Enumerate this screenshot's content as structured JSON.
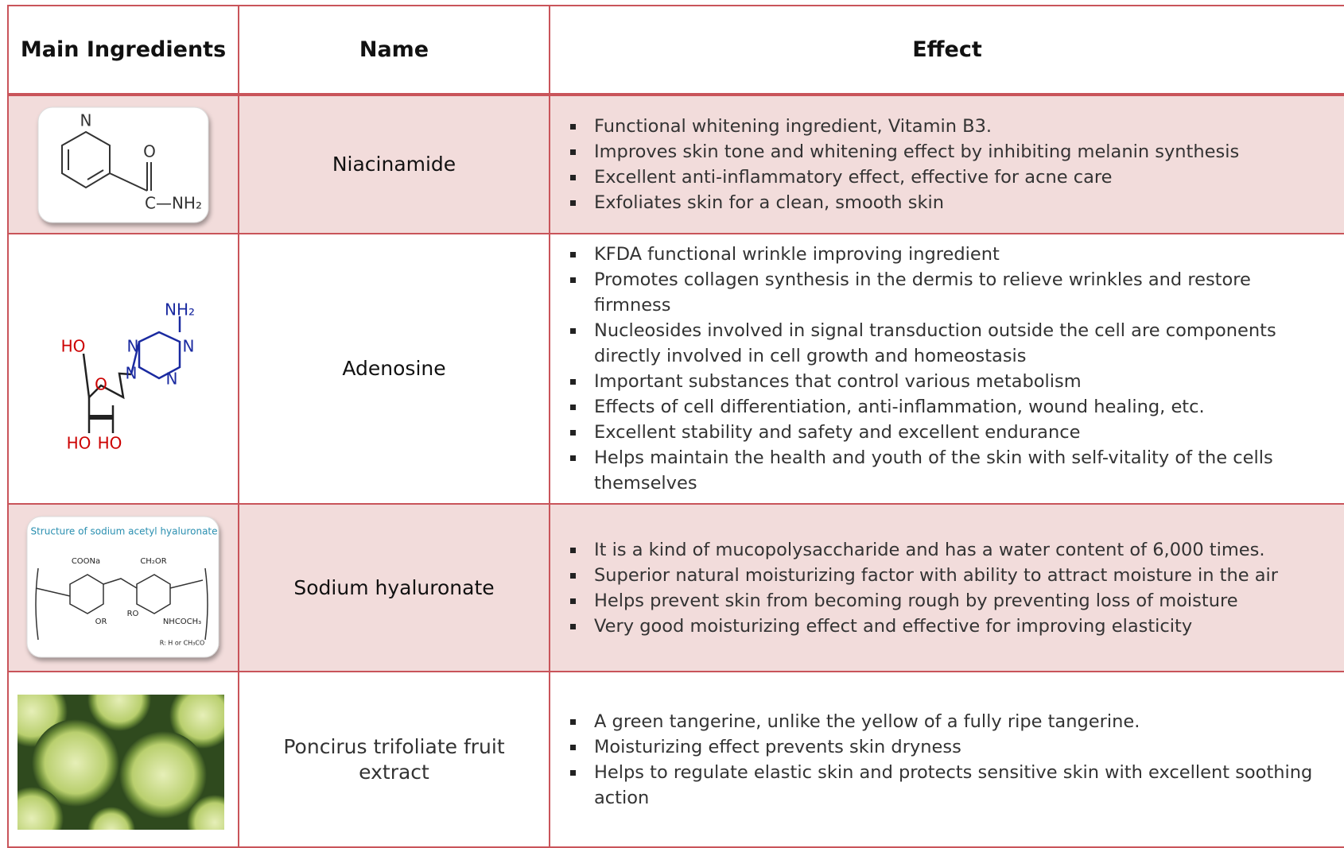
{
  "table": {
    "header": [
      "Main Ingredients",
      "Name",
      "Effect"
    ],
    "rows": [
      {
        "name": "Niacinamide",
        "image_labels": [
          "N",
          "O",
          "C—NH₂"
        ],
        "effects": [
          "Functional whitening ingredient, Vitamin B3.",
          "Improves skin tone and whitening effect by inhibiting melanin synthesis",
          "Excellent anti-inflammatory effect, effective for acne care",
          "Exfoliates skin for a clean, smooth skin"
        ]
      },
      {
        "name": "Adenosine",
        "image_labels": [
          "NH₂",
          "HO",
          "N",
          "N",
          "N",
          "N",
          "O",
          "HO",
          "HO"
        ],
        "effects": [
          "KFDA functional wrinkle improving ingredient",
          "Promotes collagen synthesis in the dermis to relieve wrinkles and restore firmness",
          "Nucleosides involved in signal transduction outside the cell are components directly involved in cell growth and homeostasis",
          "Important substances that control various metabolism",
          "Effects of cell differentiation, anti-inflammation, wound healing, etc.",
          "Excellent stability and safety and excellent endurance",
          "Helps maintain the health and youth of the skin with self-vitality of the cells themselves"
        ]
      },
      {
        "name": "Sodium hyaluronate",
        "image_caption": "Structure of sodium acetyl hyaluronate",
        "image_labels": [
          "COONa",
          "CH₂OR",
          "OR",
          "RO",
          "NHCOCH₃",
          "R: H or CH₃CO"
        ],
        "effects": [
          "It is a kind of mucopolysaccharide and has a water content of 6,000 times.",
          "Superior natural moisturizing factor with ability to attract moisture in the air",
          "Helps prevent skin from becoming rough by preventing loss of moisture",
          "Very good moisturizing effect and effective for improving elasticity"
        ]
      },
      {
        "name": "Poncirus trifoliate fruit extract",
        "effects": [
          "A green tangerine, unlike the yellow of a fully ripe tangerine.",
          "Moisturizing effect prevents skin dryness",
          "Helps to regulate elastic skin and protects sensitive skin with excellent soothing action"
        ]
      }
    ]
  }
}
